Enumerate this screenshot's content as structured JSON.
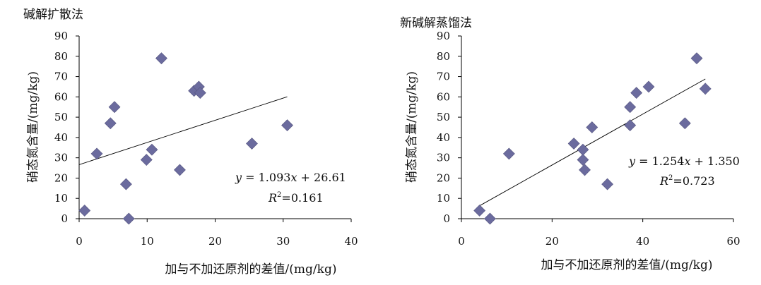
{
  "chart_data": [
    {
      "type": "scatter",
      "title": "碱解扩散法",
      "xlabel": "加与不加还原剂的差值/(mg/kg)",
      "ylabel": "硝态氮含量/(mg/kg)",
      "xlim": [
        0,
        40
      ],
      "ylim": [
        0,
        90
      ],
      "xticks": [
        "0",
        "10",
        "20",
        "30",
        "40"
      ],
      "yticks": [
        "0",
        "10",
        "20",
        "30",
        "40",
        "50",
        "60",
        "70",
        "80",
        "90"
      ],
      "grid": false,
      "marker_color": "#6b6b9e",
      "points": [
        {
          "x": 0.8,
          "y": 4
        },
        {
          "x": 2.6,
          "y": 32
        },
        {
          "x": 4.6,
          "y": 47
        },
        {
          "x": 5.2,
          "y": 55
        },
        {
          "x": 6.9,
          "y": 17
        },
        {
          "x": 7.3,
          "y": 0
        },
        {
          "x": 9.9,
          "y": 29
        },
        {
          "x": 10.7,
          "y": 34
        },
        {
          "x": 12.1,
          "y": 79
        },
        {
          "x": 14.8,
          "y": 24
        },
        {
          "x": 16.9,
          "y": 63
        },
        {
          "x": 17.6,
          "y": 65
        },
        {
          "x": 17.8,
          "y": 62
        },
        {
          "x": 25.4,
          "y": 37
        },
        {
          "x": 30.6,
          "y": 46
        }
      ],
      "fit": {
        "slope": 1.093,
        "intercept": 26.61,
        "x_range": [
          0,
          30.6
        ]
      },
      "equation": {
        "y": "y",
        "rest": " = 1.093",
        "x": "x",
        "tail": " + 26.61"
      },
      "r2": {
        "r": "R",
        "sup": "2",
        "value": "=0.161"
      }
    },
    {
      "type": "scatter",
      "title": "新碱解蒸馏法",
      "xlabel": "加与不加还原剂的差值/(mg/kg)",
      "ylabel": "硝态氮含量/(mg/kg)",
      "xlim": [
        0,
        60
      ],
      "ylim": [
        0,
        90
      ],
      "xticks": [
        "0",
        "20",
        "40",
        "60"
      ],
      "yticks": [
        "0",
        "10",
        "20",
        "30",
        "40",
        "50",
        "60",
        "70",
        "80",
        "90"
      ],
      "grid": false,
      "marker_color": "#6b6b9e",
      "points": [
        {
          "x": 4.0,
          "y": 4
        },
        {
          "x": 6.3,
          "y": 0
        },
        {
          "x": 10.5,
          "y": 32
        },
        {
          "x": 24.8,
          "y": 37
        },
        {
          "x": 26.8,
          "y": 34
        },
        {
          "x": 26.8,
          "y": 29
        },
        {
          "x": 27.2,
          "y": 24
        },
        {
          "x": 28.8,
          "y": 45
        },
        {
          "x": 32.2,
          "y": 17
        },
        {
          "x": 37.2,
          "y": 55
        },
        {
          "x": 37.2,
          "y": 46
        },
        {
          "x": 38.6,
          "y": 62
        },
        {
          "x": 41.3,
          "y": 65
        },
        {
          "x": 49.3,
          "y": 47
        },
        {
          "x": 51.9,
          "y": 79
        },
        {
          "x": 53.8,
          "y": 64
        }
      ],
      "fit": {
        "slope": 1.254,
        "intercept": 1.35,
        "x_range": [
          4.0,
          53.8
        ]
      },
      "equation": {
        "y": "y",
        "rest": " = 1.254",
        "x": "x",
        "tail": " + 1.350"
      },
      "r2": {
        "r": "R",
        "sup": "2",
        "value": "=0.723"
      }
    }
  ]
}
